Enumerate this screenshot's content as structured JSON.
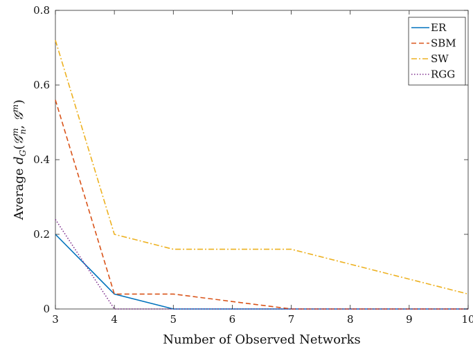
{
  "chart_data": {
    "type": "line",
    "title": "",
    "xlabel": "Number of Observed Networks",
    "ylabel": "Average d_G(𝒢_n^m, 𝒢^m)",
    "ylabel_parts": {
      "prefix": "Average ",
      "d": "d",
      "d_sub": "G",
      "open": "(",
      "g1": "𝒢",
      "g1_sub": "n",
      "g1_sup": "m",
      "sep": ", ",
      "g2": "𝒢",
      "g2_sup": "m",
      "close": ")"
    },
    "xlim": [
      3,
      10
    ],
    "ylim": [
      0,
      0.8
    ],
    "xticks": [
      "3",
      "4",
      "5",
      "6",
      "7",
      "8",
      "9",
      "10"
    ],
    "xtick_values": [
      3,
      4,
      5,
      6,
      7,
      8,
      9,
      10
    ],
    "yticks": [
      "0",
      "0.2",
      "0.4",
      "0.6",
      "0.8"
    ],
    "ytick_values": [
      0,
      0.2,
      0.4,
      0.6,
      0.8
    ],
    "grid": false,
    "legend_position": "top-right",
    "series": [
      {
        "name": "ER",
        "color": "#0072BD",
        "dash": "solid",
        "x": [
          3,
          4,
          5,
          7,
          10
        ],
        "y": [
          0.2,
          0.04,
          0.0,
          0.0,
          0.0
        ]
      },
      {
        "name": "SBM",
        "color": "#D95319",
        "dash": "dashed",
        "x": [
          3,
          4,
          5,
          7,
          10
        ],
        "y": [
          0.56,
          0.04,
          0.04,
          0.0,
          0.0
        ]
      },
      {
        "name": "SW",
        "color": "#EDB120",
        "dash": "dashdot",
        "x": [
          3,
          4,
          5,
          7,
          10
        ],
        "y": [
          0.72,
          0.2,
          0.16,
          0.16,
          0.04
        ]
      },
      {
        "name": "RGG",
        "color": "#7E2F8E",
        "dash": "dotted",
        "x": [
          3,
          4,
          5,
          7,
          10
        ],
        "y": [
          0.24,
          0.0,
          0.0,
          0.0,
          0.0
        ]
      }
    ]
  }
}
